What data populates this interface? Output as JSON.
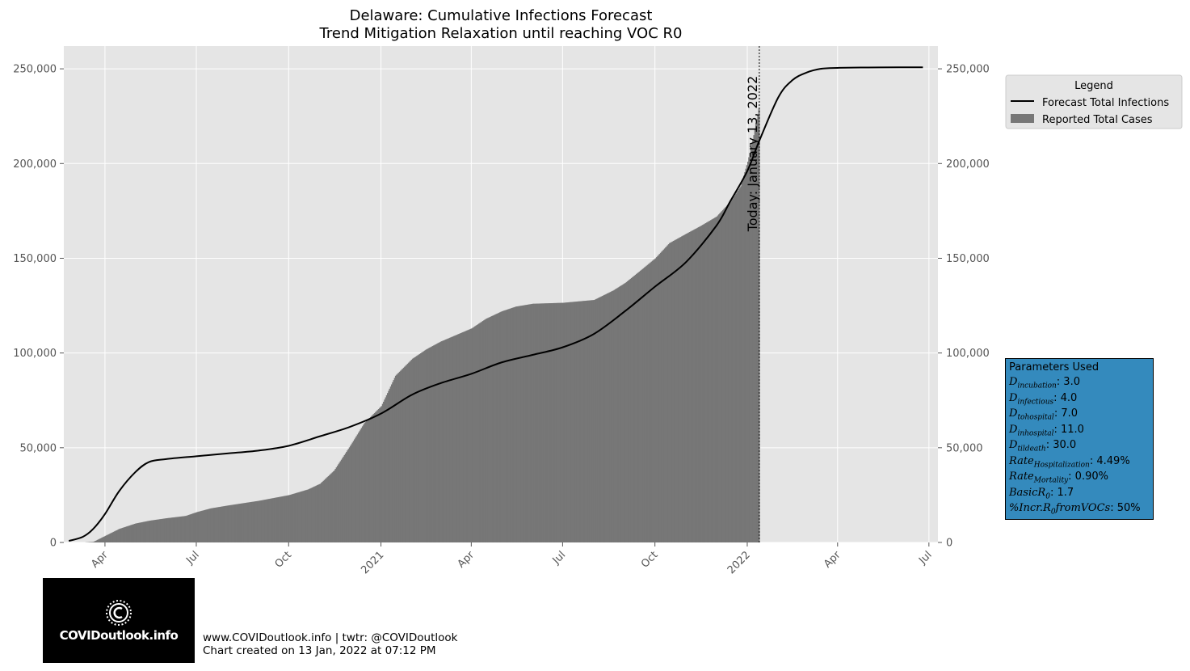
{
  "chart_data": {
    "type": "area",
    "title": "Delaware: Cumulative Infections Forecast",
    "subtitle": "Trend Mitigation Relaxation until reaching VOC R0",
    "x_ticks": [
      "Apr",
      "Jul",
      "Oct",
      "2021",
      "Apr",
      "Jul",
      "Oct",
      "2022",
      "Apr",
      "Jul"
    ],
    "x_tick_dates": [
      "2020-04-01",
      "2020-07-01",
      "2020-10-01",
      "2021-01-01",
      "2021-04-01",
      "2021-07-01",
      "2021-10-01",
      "2022-01-01",
      "2022-04-01",
      "2022-07-01"
    ],
    "xlim": [
      "2020-02-20",
      "2022-07-10"
    ],
    "y_ticks": [
      "0",
      "50,000",
      "100,000",
      "150,000",
      "200,000",
      "250,000"
    ],
    "y_tick_values": [
      0,
      50000,
      100000,
      150000,
      200000,
      250000
    ],
    "ylim": [
      0,
      262000
    ],
    "grid": true,
    "legend_position": "right",
    "series": [
      {
        "name": "Reported Total Cases",
        "kind": "bar",
        "color": "#777777",
        "x": [
          "2020-03-11",
          "2020-03-20",
          "2020-04-01",
          "2020-04-15",
          "2020-05-01",
          "2020-05-15",
          "2020-06-01",
          "2020-06-20",
          "2020-07-01",
          "2020-07-15",
          "2020-08-01",
          "2020-09-01",
          "2020-10-01",
          "2020-10-20",
          "2020-11-01",
          "2020-11-15",
          "2020-12-01",
          "2020-12-15",
          "2021-01-01",
          "2021-01-15",
          "2021-02-01",
          "2021-02-15",
          "2021-03-01",
          "2021-04-01",
          "2021-04-15",
          "2021-05-01",
          "2021-05-15",
          "2021-06-01",
          "2021-07-01",
          "2021-08-01",
          "2021-08-20",
          "2021-09-01",
          "2021-09-15",
          "2021-10-01",
          "2021-10-15",
          "2021-11-01",
          "2021-11-15",
          "2021-12-01",
          "2021-12-15",
          "2021-12-25",
          "2022-01-01",
          "2022-01-07",
          "2022-01-12"
        ],
        "values": [
          0,
          300,
          3500,
          7200,
          10000,
          11500,
          12800,
          14000,
          16000,
          18000,
          19500,
          22000,
          25000,
          28000,
          31000,
          38000,
          51000,
          63000,
          72000,
          88000,
          97000,
          102000,
          106000,
          113000,
          118000,
          122000,
          124500,
          126000,
          126500,
          128000,
          133000,
          137000,
          143000,
          150000,
          158000,
          163000,
          167000,
          172000,
          180000,
          188000,
          201000,
          215000,
          229000
        ]
      },
      {
        "name": "Forecast Total Infections",
        "kind": "line",
        "color": "#000000",
        "x": [
          "2020-02-25",
          "2020-03-10",
          "2020-03-20",
          "2020-04-01",
          "2020-04-15",
          "2020-05-01",
          "2020-05-15",
          "2020-06-01",
          "2020-07-01",
          "2020-08-01",
          "2020-09-01",
          "2020-10-01",
          "2020-11-01",
          "2020-12-01",
          "2021-01-01",
          "2021-02-01",
          "2021-03-01",
          "2021-04-01",
          "2021-05-01",
          "2021-06-01",
          "2021-07-01",
          "2021-08-01",
          "2021-09-01",
          "2021-10-01",
          "2021-11-01",
          "2021-12-01",
          "2021-12-15",
          "2022-01-01",
          "2022-01-13",
          "2022-02-01",
          "2022-02-15",
          "2022-03-01",
          "2022-03-15",
          "2022-04-01",
          "2022-05-01",
          "2022-06-01",
          "2022-06-25"
        ],
        "values": [
          800,
          3000,
          7000,
          15000,
          27000,
          37000,
          42500,
          44000,
          45500,
          47000,
          48500,
          51000,
          56000,
          61000,
          68000,
          78000,
          84000,
          89000,
          95000,
          99000,
          103000,
          110000,
          122000,
          135000,
          148000,
          167000,
          180000,
          196000,
          212000,
          235000,
          244000,
          248000,
          250000,
          250500,
          250700,
          250800,
          250800
        ]
      }
    ],
    "annotations": [
      {
        "text": "Today: January 13, 2022",
        "x": "2022-01-13",
        "style": "dotted vertical line"
      }
    ]
  },
  "legend": {
    "title": "Legend",
    "items": [
      {
        "label": "Forecast Total Infections",
        "kind": "line",
        "color": "#000000"
      },
      {
        "label": "Reported Total Cases",
        "kind": "patch",
        "color": "#777777"
      }
    ]
  },
  "params": {
    "title": "Parameters Used",
    "d_incubation": ": 3.0",
    "d_infectious": ": 4.0",
    "d_tohospital": ": 7.0",
    "d_inhospital": ": 11.0",
    "d_tildeath": ": 30.0",
    "rate_hosp": ": 4.49%",
    "rate_mort": ": 0.90%",
    "basic_r0": ": 1.7",
    "incr_r0": ": 50%"
  },
  "logo": {
    "text": "COVIDoutlook.info"
  },
  "footer": {
    "line1": "www.COVIDoutlook.info | twtr: @COVIDoutlook",
    "line2": "Chart created on 13 Jan, 2022 at 07:12 PM"
  },
  "colors": {
    "plot_bg": "#e5e5e5",
    "grid": "#ffffff",
    "param_box": "#348abd"
  }
}
